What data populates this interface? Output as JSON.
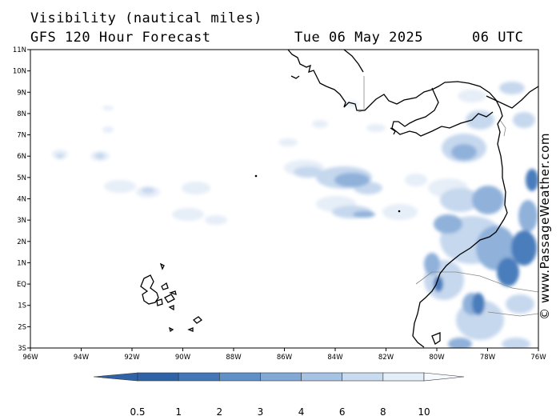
{
  "title": "Visibility (nautical miles)",
  "subtitle": "GFS 120 Hour Forecast",
  "date": "Tue 06 May 2025",
  "time": "06 UTC",
  "credit": "© www.PassageWeather.com",
  "map": {
    "lon_range": [
      -96,
      -76
    ],
    "lat_range": [
      -3,
      11
    ],
    "lat_labels": [
      "11N",
      "10N",
      "9N",
      "8N",
      "7N",
      "6N",
      "5N",
      "4N",
      "3N",
      "2N",
      "1N",
      "EQ",
      "1S",
      "2S",
      "3S"
    ],
    "lon_labels": [
      "96W",
      "94W",
      "92W",
      "90W",
      "88W",
      "86W",
      "84W",
      "82W",
      "80W",
      "78W",
      "76W"
    ]
  },
  "legend": {
    "labels": [
      "0.5",
      "1",
      "2",
      "3",
      "4",
      "6",
      "8",
      "10"
    ],
    "colors": [
      "#2f63a8",
      "#4377b8",
      "#6090c8",
      "#82a9d6",
      "#a6c3e4",
      "#c8dbf0",
      "#e4eef9",
      "#f6f9fd"
    ]
  },
  "colors": {
    "coast": "#000000",
    "border": "#888888"
  }
}
